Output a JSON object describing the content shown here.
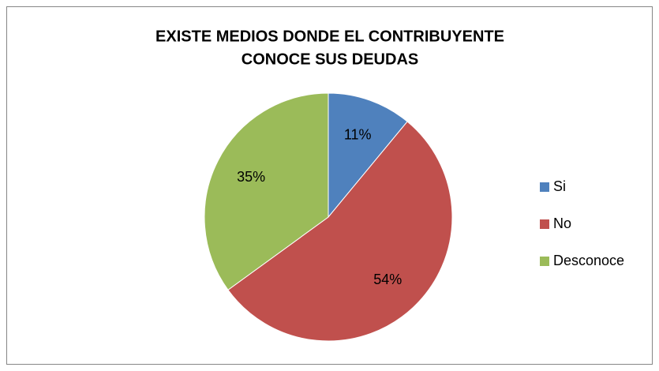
{
  "chart_data": {
    "type": "pie",
    "title": [
      "EXISTE MEDIOS DONDE EL CONTRIBUYENTE",
      "CONOCE SUS DEUDAS"
    ],
    "categories": [
      "Si",
      "No",
      "Desconoce"
    ],
    "values": [
      11,
      54,
      35
    ],
    "value_labels": [
      "11%",
      "54%",
      "35%"
    ],
    "colors": [
      "#4f81bd",
      "#c0504d",
      "#9bbb59"
    ],
    "legend": "right"
  }
}
